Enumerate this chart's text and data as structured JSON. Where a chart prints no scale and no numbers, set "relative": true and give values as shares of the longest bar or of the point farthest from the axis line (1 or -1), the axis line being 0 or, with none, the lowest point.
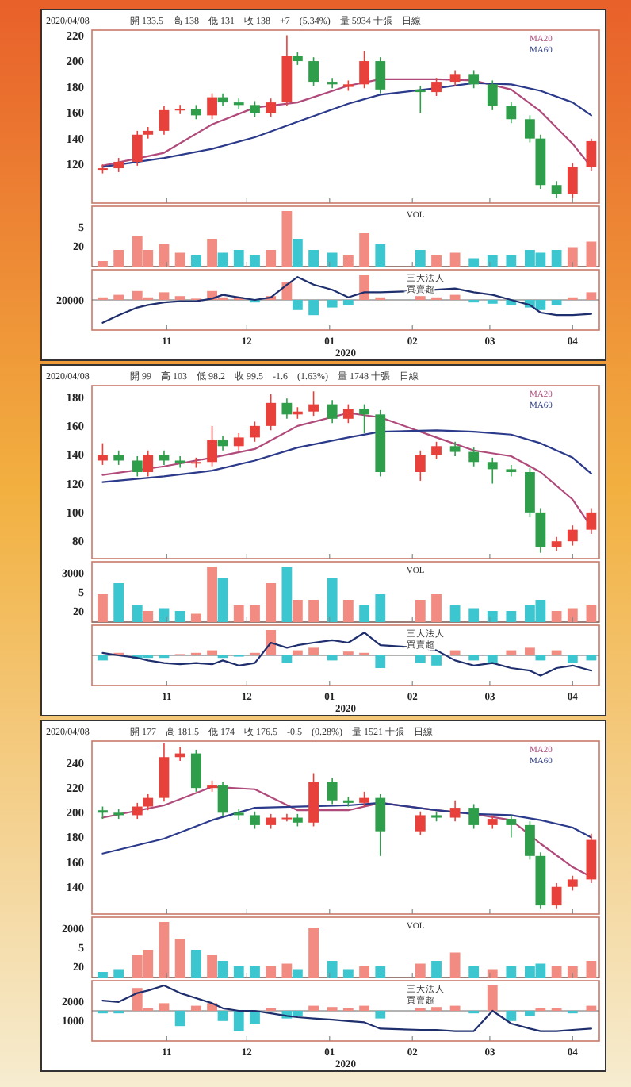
{
  "chart_data": [
    {
      "type": "candlestick",
      "title": "2020/04/08",
      "subtitle": "開 133.5　高 138　低 131　收 138　+7　(5.34%)　量 5934 十張　日線",
      "x": [
        "2019-10-08",
        "2019-10-14",
        "2019-10-21",
        "2019-10-25",
        "2019-10-31",
        "2019-11-06",
        "2019-11-12",
        "2019-11-18",
        "2019-11-22",
        "2019-11-28",
        "2019-12-04",
        "2019-12-10",
        "2019-12-16",
        "2019-12-20",
        "2019-12-26",
        "2020-01-02",
        "2020-01-08",
        "2020-01-14",
        "2020-01-20",
        "2020-02-04",
        "2020-02-10",
        "2020-02-17",
        "2020-02-24",
        "2020-03-02",
        "2020-03-09",
        "2020-03-16",
        "2020-03-20",
        "2020-03-26",
        "2020-04-01",
        "2020-04-08"
      ],
      "ohlc": [
        [
          116,
          120,
          113,
          117
        ],
        [
          117,
          125,
          114,
          122
        ],
        [
          122,
          146,
          119,
          143
        ],
        [
          143,
          149,
          140,
          146
        ],
        [
          146,
          165,
          143,
          162
        ],
        [
          162,
          166,
          159,
          163
        ],
        [
          163,
          166,
          155,
          158
        ],
        [
          158,
          175,
          155,
          172
        ],
        [
          172,
          175,
          165,
          168
        ],
        [
          168,
          171,
          163,
          166
        ],
        [
          166,
          169,
          157,
          160
        ],
        [
          160,
          171,
          157,
          168
        ],
        [
          168,
          220,
          165,
          204
        ],
        [
          204,
          207,
          197,
          200
        ],
        [
          200,
          203,
          181,
          184
        ],
        [
          184,
          187,
          179,
          182
        ],
        [
          180,
          185,
          177,
          182
        ],
        [
          182,
          208,
          179,
          200
        ],
        [
          200,
          203,
          175,
          178
        ],
        [
          178,
          181,
          160,
          176
        ],
        [
          176,
          187,
          173,
          184
        ],
        [
          184,
          193,
          181,
          190
        ],
        [
          190,
          193,
          179,
          182
        ],
        [
          182,
          185,
          162,
          165
        ],
        [
          165,
          168,
          152,
          155
        ],
        [
          155,
          158,
          137,
          140
        ],
        [
          140,
          143,
          101,
          104
        ],
        [
          104,
          107,
          94,
          97
        ],
        [
          97,
          121,
          94,
          118
        ],
        [
          118,
          140,
          115,
          138
        ]
      ],
      "colors": [
        "#e8413c",
        "#e8413c",
        "#e8413c",
        "#e8413c",
        "#e8413c",
        "#e8413c",
        "#2f9e4a",
        "#e8413c",
        "#2f9e4a",
        "#2f9e4a",
        "#2f9e4a",
        "#e8413c",
        "#e8413c",
        "#2f9e4a",
        "#2f9e4a",
        "#2f9e4a",
        "#e8413c",
        "#e8413c",
        "#2f9e4a",
        "#2f9e4a",
        "#e8413c",
        "#e8413c",
        "#2f9e4a",
        "#2f9e4a",
        "#2f9e4a",
        "#2f9e4a",
        "#2f9e4a",
        "#2f9e4a",
        "#e8413c",
        "#e8413c"
      ],
      "series": [
        {
          "type": "line",
          "name": "MA20",
          "color": "#b04a7a",
          "x": [
            "2019-10-08",
            "2019-10-31",
            "2019-11-18",
            "2019-12-04",
            "2019-12-20",
            "2020-01-08",
            "2020-01-20",
            "2020-02-10",
            "2020-02-24",
            "2020-03-09",
            "2020-03-20",
            "2020-04-01",
            "2020-04-08"
          ],
          "values": [
            119,
            129,
            151,
            164,
            168,
            181,
            186,
            186,
            185,
            178,
            161,
            136,
            118
          ]
        },
        {
          "type": "line",
          "name": "MA60",
          "color": "#2b3a8a",
          "x": [
            "2019-10-08",
            "2019-10-31",
            "2019-11-18",
            "2019-12-04",
            "2019-12-20",
            "2020-01-08",
            "2020-01-20",
            "2020-02-10",
            "2020-02-24",
            "2020-03-09",
            "2020-03-20",
            "2020-04-01",
            "2020-04-08"
          ],
          "values": [
            118,
            125,
            132,
            141,
            153,
            167,
            174,
            179,
            183,
            182,
            177,
            168,
            158
          ]
        }
      ],
      "xlim": [
        "2019-10-04",
        "2020-04-11"
      ],
      "xticks": [
        {
          "value": "2019-11-01",
          "label": null
        },
        {
          "value": "2019-12-01",
          "label": null
        },
        {
          "value": "2020-01-01",
          "label": null
        },
        {
          "value": "2020-02-01",
          "label": null
        },
        {
          "value": "2020-03-01",
          "label": null
        },
        {
          "value": "2020-04-01",
          "label": null
        }
      ],
      "ylim": [
        90,
        224
      ],
      "yticks": [
        120,
        140,
        160,
        180,
        200,
        220
      ],
      "tick_labels": "y",
      "legend": "top right"
    },
    {
      "type": "bar",
      "relative": true,
      "x": [
        "2019-10-08",
        "2019-10-14",
        "2019-10-21",
        "2019-10-25",
        "2019-10-31",
        "2019-11-06",
        "2019-11-12",
        "2019-11-18",
        "2019-11-22",
        "2019-11-28",
        "2019-12-04",
        "2019-12-10",
        "2019-12-16",
        "2019-12-20",
        "2019-12-26",
        "2020-01-02",
        "2020-01-08",
        "2020-01-14",
        "2020-01-20",
        "2020-02-04",
        "2020-02-10",
        "2020-02-17",
        "2020-02-24",
        "2020-03-02",
        "2020-03-09",
        "2020-03-16",
        "2020-03-20",
        "2020-03-26",
        "2020-04-01",
        "2020-04-08"
      ],
      "values": [
        0.1,
        0.3,
        0.55,
        0.3,
        0.4,
        0.25,
        0.2,
        0.5,
        0.25,
        0.3,
        0.2,
        0.3,
        1.0,
        0.5,
        0.3,
        0.25,
        0.2,
        0.6,
        0.4,
        0.3,
        0.2,
        0.25,
        0.15,
        0.2,
        0.2,
        0.3,
        0.25,
        0.3,
        0.35,
        0.45
      ],
      "colors": [
        "#f28b82",
        "#f28b82",
        "#f28b82",
        "#f28b82",
        "#f28b82",
        "#f28b82",
        "#3cc6cf",
        "#f28b82",
        "#3cc6cf",
        "#3cc6cf",
        "#3cc6cf",
        "#f28b82",
        "#f28b82",
        "#3cc6cf",
        "#3cc6cf",
        "#3cc6cf",
        "#f28b82",
        "#f28b82",
        "#3cc6cf",
        "#3cc6cf",
        "#f28b82",
        "#f28b82",
        "#3cc6cf",
        "#3cc6cf",
        "#3cc6cf",
        "#3cc6cf",
        "#3cc6cf",
        "#3cc6cf",
        "#f28b82",
        "#f28b82"
      ],
      "xlim": [
        "2019-10-04",
        "2020-04-11"
      ],
      "xticks": [
        {
          "value": "2019-11-01",
          "label": null
        },
        {
          "value": "2019-12-01",
          "label": null
        },
        {
          "value": "2020-01-01",
          "label": null
        },
        {
          "value": "2020-02-01",
          "label": null
        },
        {
          "value": "2020-03-01",
          "label": null
        },
        {
          "value": "2020-04-01",
          "label": null
        }
      ],
      "tick_labels": false,
      "annotations": [
        "VOL",
        "5",
        "20"
      ]
    },
    {
      "type": "bar",
      "relative": true,
      "x": [
        "2019-10-08",
        "2019-10-14",
        "2019-10-21",
        "2019-10-25",
        "2019-10-31",
        "2019-11-06",
        "2019-11-12",
        "2019-11-18",
        "2019-11-22",
        "2019-11-28",
        "2019-12-04",
        "2019-12-10",
        "2019-12-16",
        "2019-12-20",
        "2019-12-26",
        "2020-01-02",
        "2020-01-08",
        "2020-01-14",
        "2020-01-20",
        "2020-02-04",
        "2020-02-10",
        "2020-02-17",
        "2020-02-24",
        "2020-03-02",
        "2020-03-09",
        "2020-03-16",
        "2020-03-20",
        "2020-03-26",
        "2020-04-01",
        "2020-04-08"
      ],
      "series": [
        {
          "colors": [
            "#f28b82",
            "#f28b82",
            "#f28b82",
            "#f28b82",
            "#f28b82",
            "#f28b82",
            "#f28b82",
            "#f28b82",
            "#f28b82",
            "#f28b82",
            "#3cc6cf",
            "#f28b82",
            "#f28b82",
            "#3cc6cf",
            "#3cc6cf",
            "#3cc6cf",
            "#3cc6cf",
            "#f28b82",
            "#f28b82",
            "#f28b82",
            "#f28b82",
            "#f28b82",
            "#3cc6cf",
            "#3cc6cf",
            "#3cc6cf",
            "#3cc6cf",
            "#3cc6cf",
            "#3cc6cf",
            "#f28b82",
            "#f28b82"
          ],
          "values": [
            0.1,
            0.2,
            0.35,
            0.1,
            0.3,
            0.15,
            0.05,
            0.35,
            0.1,
            0.1,
            -0.1,
            0.15,
            0.7,
            -0.4,
            -0.6,
            -0.3,
            -0.2,
            1.0,
            0.1,
            0.15,
            0.1,
            0.2,
            -0.1,
            -0.15,
            -0.2,
            -0.3,
            -0.4,
            -0.2,
            0.1,
            0.3
          ]
        },
        {
          "type": "line",
          "color": "#1f2f6e",
          "values": [
            -0.9,
            -0.6,
            -0.3,
            -0.2,
            -0.1,
            -0.05,
            -0.05,
            0.05,
            0.2,
            0.1,
            0.0,
            0.1,
            0.6,
            0.9,
            0.6,
            0.4,
            0.1,
            0.3,
            0.3,
            0.35,
            0.4,
            0.45,
            0.3,
            0.2,
            0.0,
            -0.2,
            -0.5,
            -0.6,
            -0.6,
            -0.55
          ]
        }
      ],
      "xlim": [
        "2019-10-04",
        "2020-04-11"
      ],
      "xticks": [
        {
          "value": "2019-11-01",
          "label": "11"
        },
        {
          "value": "2019-12-01",
          "label": "12"
        },
        {
          "value": "2020-01-01",
          "label": "01"
        },
        {
          "value": "2020-02-01",
          "label": "02"
        },
        {
          "value": "2020-03-01",
          "label": "03"
        },
        {
          "value": "2020-04-01",
          "label": "04"
        }
      ],
      "xlabel": "2020",
      "tick_labels": "x",
      "annotations": [
        "20000",
        "三大法人",
        "買賣超"
      ]
    },
    {
      "type": "candlestick",
      "title": "2020/04/08",
      "subtitle": "開 99　高 103　低 98.2　收 99.5　-1.6　(1.63%)　量 1748 十張　日線",
      "x": [
        "2019-10-08",
        "2019-10-14",
        "2019-10-21",
        "2019-10-25",
        "2019-10-31",
        "2019-11-06",
        "2019-11-12",
        "2019-11-18",
        "2019-11-22",
        "2019-11-28",
        "2019-12-04",
        "2019-12-10",
        "2019-12-16",
        "2019-12-20",
        "2019-12-26",
        "2020-01-02",
        "2020-01-08",
        "2020-01-14",
        "2020-01-20",
        "2020-02-04",
        "2020-02-10",
        "2020-02-17",
        "2020-02-24",
        "2020-03-02",
        "2020-03-09",
        "2020-03-16",
        "2020-03-20",
        "2020-03-26",
        "2020-04-01",
        "2020-04-08"
      ],
      "ohlc": [
        [
          136,
          148,
          133,
          140
        ],
        [
          140,
          143,
          133,
          136
        ],
        [
          136,
          139,
          125,
          128
        ],
        [
          128,
          143,
          125,
          140
        ],
        [
          140,
          143,
          133,
          136
        ],
        [
          136,
          139,
          131,
          134
        ],
        [
          134,
          138,
          131,
          135
        ],
        [
          135,
          160,
          132,
          150
        ],
        [
          150,
          153,
          143,
          146
        ],
        [
          146,
          155,
          143,
          152
        ],
        [
          152,
          163,
          149,
          160
        ],
        [
          160,
          182,
          157,
          176
        ],
        [
          176,
          179,
          165,
          168
        ],
        [
          168,
          173,
          165,
          170
        ],
        [
          170,
          184,
          167,
          175
        ],
        [
          175,
          178,
          162,
          165
        ],
        [
          165,
          175,
          162,
          172
        ],
        [
          172,
          175,
          155,
          168
        ],
        [
          168,
          171,
          125,
          128
        ],
        [
          128,
          143,
          122,
          140
        ],
        [
          140,
          149,
          137,
          146
        ],
        [
          146,
          149,
          139,
          142
        ],
        [
          142,
          145,
          132,
          135
        ],
        [
          135,
          138,
          120,
          130
        ],
        [
          130,
          133,
          125,
          128
        ],
        [
          128,
          131,
          97,
          100
        ],
        [
          100,
          103,
          72,
          76
        ],
        [
          76,
          83,
          73,
          80
        ],
        [
          80,
          91,
          77,
          88
        ],
        [
          88,
          103,
          85,
          100
        ]
      ],
      "colors": [
        "#e8413c",
        "#2f9e4a",
        "#2f9e4a",
        "#e8413c",
        "#2f9e4a",
        "#2f9e4a",
        "#e8413c",
        "#e8413c",
        "#2f9e4a",
        "#e8413c",
        "#e8413c",
        "#e8413c",
        "#2f9e4a",
        "#e8413c",
        "#e8413c",
        "#2f9e4a",
        "#e8413c",
        "#2f9e4a",
        "#2f9e4a",
        "#e8413c",
        "#e8413c",
        "#2f9e4a",
        "#2f9e4a",
        "#2f9e4a",
        "#2f9e4a",
        "#2f9e4a",
        "#2f9e4a",
        "#e8413c",
        "#e8413c",
        "#e8413c"
      ],
      "series": [
        {
          "type": "line",
          "name": "MA20",
          "color": "#b04a7a",
          "x": [
            "2019-10-08",
            "2019-10-31",
            "2019-11-18",
            "2019-12-04",
            "2019-12-20",
            "2020-01-08",
            "2020-01-20",
            "2020-02-10",
            "2020-02-24",
            "2020-03-09",
            "2020-03-20",
            "2020-04-01",
            "2020-04-08"
          ],
          "values": [
            126,
            132,
            138,
            144,
            160,
            169,
            166,
            152,
            143,
            139,
            128,
            109,
            90
          ]
        },
        {
          "type": "line",
          "name": "MA60",
          "color": "#2b3a8a",
          "x": [
            "2019-10-08",
            "2019-10-31",
            "2019-11-18",
            "2019-12-04",
            "2019-12-20",
            "2020-01-08",
            "2020-01-20",
            "2020-02-10",
            "2020-02-24",
            "2020-03-09",
            "2020-03-20",
            "2020-04-01",
            "2020-04-08"
          ],
          "values": [
            121,
            125,
            129,
            136,
            145,
            152,
            156,
            157,
            156,
            154,
            148,
            138,
            127
          ]
        }
      ],
      "xlim": [
        "2019-10-04",
        "2020-04-11"
      ],
      "xticks": [
        {
          "value": "2019-11-01",
          "label": null
        },
        {
          "value": "2019-12-01",
          "label": null
        },
        {
          "value": "2020-01-01",
          "label": null
        },
        {
          "value": "2020-02-01",
          "label": null
        },
        {
          "value": "2020-03-01",
          "label": null
        },
        {
          "value": "2020-04-01",
          "label": null
        }
      ],
      "ylim": [
        68,
        188
      ],
      "yticks": [
        80,
        100,
        120,
        140,
        160,
        180
      ],
      "tick_labels": "y",
      "legend": "top right"
    },
    {
      "type": "bar",
      "relative": true,
      "x": [
        "2019-10-08",
        "2019-10-14",
        "2019-10-21",
        "2019-10-25",
        "2019-10-31",
        "2019-11-06",
        "2019-11-12",
        "2019-11-18",
        "2019-11-22",
        "2019-11-28",
        "2019-12-04",
        "2019-12-10",
        "2019-12-16",
        "2019-12-20",
        "2019-12-26",
        "2020-01-02",
        "2020-01-08",
        "2020-01-14",
        "2020-01-20",
        "2020-02-04",
        "2020-02-10",
        "2020-02-17",
        "2020-02-24",
        "2020-03-02",
        "2020-03-09",
        "2020-03-16",
        "2020-03-20",
        "2020-03-26",
        "2020-04-01",
        "2020-04-08"
      ],
      "values": [
        0.5,
        0.7,
        0.3,
        0.2,
        0.25,
        0.2,
        0.15,
        1.0,
        0.8,
        0.3,
        0.3,
        0.7,
        1.0,
        0.4,
        0.4,
        0.8,
        0.4,
        0.3,
        0.5,
        0.4,
        0.5,
        0.3,
        0.25,
        0.2,
        0.2,
        0.3,
        0.4,
        0.2,
        0.25,
        0.3
      ],
      "colors": [
        "#f28b82",
        "#3cc6cf",
        "#3cc6cf",
        "#f28b82",
        "#3cc6cf",
        "#3cc6cf",
        "#f28b82",
        "#f28b82",
        "#3cc6cf",
        "#f28b82",
        "#f28b82",
        "#f28b82",
        "#3cc6cf",
        "#f28b82",
        "#f28b82",
        "#3cc6cf",
        "#f28b82",
        "#3cc6cf",
        "#3cc6cf",
        "#f28b82",
        "#f28b82",
        "#3cc6cf",
        "#3cc6cf",
        "#3cc6cf",
        "#3cc6cf",
        "#3cc6cf",
        "#3cc6cf",
        "#f28b82",
        "#f28b82",
        "#f28b82"
      ],
      "xlim": [
        "2019-10-04",
        "2020-04-11"
      ],
      "xticks": [
        {
          "value": "2019-11-01",
          "label": null
        },
        {
          "value": "2019-12-01",
          "label": null
        },
        {
          "value": "2020-01-01",
          "label": null
        },
        {
          "value": "2020-02-01",
          "label": null
        },
        {
          "value": "2020-03-01",
          "label": null
        },
        {
          "value": "2020-04-01",
          "label": null
        }
      ],
      "tick_labels": false,
      "annotations": [
        "3000",
        "VOL",
        "5",
        "20"
      ]
    },
    {
      "type": "bar",
      "relative": true,
      "x": [
        "2019-10-08",
        "2019-10-14",
        "2019-10-21",
        "2019-10-25",
        "2019-10-31",
        "2019-11-06",
        "2019-11-12",
        "2019-11-18",
        "2019-11-22",
        "2019-11-28",
        "2019-12-04",
        "2019-12-10",
        "2019-12-16",
        "2019-12-20",
        "2019-12-26",
        "2020-01-02",
        "2020-01-08",
        "2020-01-14",
        "2020-01-20",
        "2020-02-04",
        "2020-02-10",
        "2020-02-17",
        "2020-02-24",
        "2020-03-02",
        "2020-03-09",
        "2020-03-16",
        "2020-03-20",
        "2020-03-26",
        "2020-04-01",
        "2020-04-08"
      ],
      "series": [
        {
          "colors": [
            "#3cc6cf",
            "#f28b82",
            "#3cc6cf",
            "#3cc6cf",
            "#3cc6cf",
            "#f28b82",
            "#f28b82",
            "#f28b82",
            "#3cc6cf",
            "#3cc6cf",
            "#f28b82",
            "#f28b82",
            "#3cc6cf",
            "#f28b82",
            "#f28b82",
            "#3cc6cf",
            "#f28b82",
            "#f28b82",
            "#3cc6cf",
            "#3cc6cf",
            "#3cc6cf",
            "#f28b82",
            "#3cc6cf",
            "#3cc6cf",
            "#f28b82",
            "#f28b82",
            "#3cc6cf",
            "#f28b82",
            "#3cc6cf",
            "#3cc6cf"
          ],
          "values": [
            -0.2,
            0.1,
            -0.15,
            -0.1,
            -0.1,
            0.05,
            0.1,
            0.2,
            -0.1,
            -0.05,
            0.1,
            1.0,
            -0.3,
            0.2,
            0.3,
            -0.2,
            0.15,
            0.1,
            -0.5,
            -0.3,
            -0.4,
            0.2,
            -0.2,
            -0.3,
            0.2,
            0.3,
            -0.2,
            0.2,
            -0.3,
            -0.2
          ]
        },
        {
          "type": "line",
          "color": "#1f2f6e",
          "values": [
            0.1,
            0.0,
            -0.1,
            -0.2,
            -0.3,
            -0.35,
            -0.3,
            -0.35,
            -0.2,
            -0.4,
            -0.3,
            0.5,
            0.3,
            0.4,
            0.5,
            0.6,
            0.5,
            0.9,
            0.4,
            0.3,
            0.2,
            -0.2,
            -0.4,
            -0.3,
            -0.5,
            -0.6,
            -0.8,
            -0.5,
            -0.4,
            -0.6
          ]
        }
      ],
      "xlim": [
        "2019-10-04",
        "2020-04-11"
      ],
      "xticks": [
        {
          "value": "2019-11-01",
          "label": "11"
        },
        {
          "value": "2019-12-01",
          "label": "12"
        },
        {
          "value": "2020-01-01",
          "label": "01"
        },
        {
          "value": "2020-02-01",
          "label": "02"
        },
        {
          "value": "2020-03-01",
          "label": "03"
        },
        {
          "value": "2020-04-01",
          "label": "04"
        }
      ],
      "xlabel": "2020",
      "tick_labels": "x",
      "annotations": [
        "三大法人",
        "買賣超"
      ]
    },
    {
      "type": "candlestick",
      "title": "2020/04/08",
      "subtitle": "開 177　高 181.5　低 174　收 176.5　-0.5　(0.28%)　量 1521 十張　日線",
      "x": [
        "2019-10-08",
        "2019-10-14",
        "2019-10-21",
        "2019-10-25",
        "2019-10-31",
        "2019-11-06",
        "2019-11-12",
        "2019-11-18",
        "2019-11-22",
        "2019-11-28",
        "2019-12-04",
        "2019-12-10",
        "2019-12-16",
        "2019-12-20",
        "2019-12-26",
        "2020-01-02",
        "2020-01-08",
        "2020-01-14",
        "2020-01-20",
        "2020-02-04",
        "2020-02-10",
        "2020-02-17",
        "2020-02-24",
        "2020-03-02",
        "2020-03-09",
        "2020-03-16",
        "2020-03-20",
        "2020-03-26",
        "2020-04-01",
        "2020-04-08"
      ],
      "ohlc": [
        [
          202,
          205,
          195,
          200
        ],
        [
          200,
          203,
          195,
          198
        ],
        [
          198,
          208,
          195,
          205
        ],
        [
          205,
          215,
          202,
          212
        ],
        [
          212,
          256,
          209,
          245
        ],
        [
          245,
          253,
          242,
          248
        ],
        [
          248,
          251,
          217,
          220
        ],
        [
          220,
          226,
          217,
          222
        ],
        [
          222,
          225,
          197,
          200
        ],
        [
          200,
          203,
          194,
          198
        ],
        [
          198,
          201,
          187,
          190
        ],
        [
          190,
          199,
          187,
          196
        ],
        [
          196,
          199,
          193,
          196
        ],
        [
          196,
          199,
          189,
          192
        ],
        [
          192,
          232,
          189,
          225
        ],
        [
          225,
          228,
          207,
          210
        ],
        [
          210,
          213,
          205,
          208
        ],
        [
          208,
          217,
          205,
          212
        ],
        [
          212,
          215,
          165,
          185
        ],
        [
          185,
          201,
          182,
          198
        ],
        [
          198,
          201,
          193,
          196
        ],
        [
          196,
          210,
          193,
          204
        ],
        [
          204,
          207,
          187,
          190
        ],
        [
          190,
          198,
          187,
          195
        ],
        [
          195,
          198,
          180,
          190
        ],
        [
          190,
          193,
          162,
          165
        ],
        [
          165,
          168,
          122,
          125
        ],
        [
          125,
          143,
          122,
          140
        ],
        [
          140,
          149,
          137,
          146
        ],
        [
          146,
          183,
          143,
          178
        ]
      ],
      "colors": [
        "#2f9e4a",
        "#2f9e4a",
        "#e8413c",
        "#e8413c",
        "#e8413c",
        "#e8413c",
        "#2f9e4a",
        "#e8413c",
        "#2f9e4a",
        "#2f9e4a",
        "#2f9e4a",
        "#e8413c",
        "#e8413c",
        "#2f9e4a",
        "#e8413c",
        "#2f9e4a",
        "#2f9e4a",
        "#e8413c",
        "#2f9e4a",
        "#e8413c",
        "#2f9e4a",
        "#e8413c",
        "#2f9e4a",
        "#e8413c",
        "#2f9e4a",
        "#2f9e4a",
        "#2f9e4a",
        "#e8413c",
        "#e8413c",
        "#e8413c"
      ],
      "series": [
        {
          "type": "line",
          "name": "MA20",
          "color": "#b04a7a",
          "x": [
            "2019-10-08",
            "2019-10-31",
            "2019-11-18",
            "2019-12-04",
            "2019-12-20",
            "2020-01-08",
            "2020-01-20",
            "2020-02-10",
            "2020-02-24",
            "2020-03-09",
            "2020-03-20",
            "2020-04-01",
            "2020-04-08"
          ],
          "values": [
            196,
            206,
            221,
            219,
            202,
            202,
            208,
            202,
            199,
            194,
            175,
            156,
            148
          ]
        },
        {
          "type": "line",
          "name": "MA60",
          "color": "#2b3a8a",
          "x": [
            "2019-10-08",
            "2019-10-31",
            "2019-11-18",
            "2019-12-04",
            "2019-12-20",
            "2020-01-08",
            "2020-01-20",
            "2020-02-10",
            "2020-02-24",
            "2020-03-09",
            "2020-03-20",
            "2020-04-01",
            "2020-04-08"
          ],
          "values": [
            167,
            179,
            194,
            204,
            205,
            206,
            208,
            202,
            199,
            198,
            194,
            188,
            180
          ]
        }
      ],
      "xlim": [
        "2019-10-04",
        "2020-04-11"
      ],
      "xticks": [
        {
          "value": "2019-11-01",
          "label": null
        },
        {
          "value": "2019-12-01",
          "label": null
        },
        {
          "value": "2020-01-01",
          "label": null
        },
        {
          "value": "2020-02-01",
          "label": null
        },
        {
          "value": "2020-03-01",
          "label": null
        },
        {
          "value": "2020-04-01",
          "label": null
        }
      ],
      "ylim": [
        118,
        258
      ],
      "yticks": [
        140,
        160,
        180,
        200,
        220,
        240
      ],
      "tick_labels": "y",
      "legend": "top right"
    },
    {
      "type": "bar",
      "relative": true,
      "x": [
        "2019-10-08",
        "2019-10-14",
        "2019-10-21",
        "2019-10-25",
        "2019-10-31",
        "2019-11-06",
        "2019-11-12",
        "2019-11-18",
        "2019-11-22",
        "2019-11-28",
        "2019-12-04",
        "2019-12-10",
        "2019-12-16",
        "2019-12-20",
        "2019-12-26",
        "2020-01-02",
        "2020-01-08",
        "2020-01-14",
        "2020-01-20",
        "2020-02-04",
        "2020-02-10",
        "2020-02-17",
        "2020-02-24",
        "2020-03-02",
        "2020-03-09",
        "2020-03-16",
        "2020-03-20",
        "2020-03-26",
        "2020-04-01",
        "2020-04-08"
      ],
      "values": [
        0.1,
        0.15,
        0.4,
        0.5,
        1.0,
        0.7,
        0.5,
        0.4,
        0.3,
        0.2,
        0.2,
        0.2,
        0.25,
        0.15,
        0.9,
        0.3,
        0.15,
        0.2,
        0.2,
        0.25,
        0.3,
        0.45,
        0.2,
        0.15,
        0.2,
        0.2,
        0.25,
        0.2,
        0.2,
        0.3
      ],
      "colors": [
        "#3cc6cf",
        "#3cc6cf",
        "#f28b82",
        "#f28b82",
        "#f28b82",
        "#f28b82",
        "#3cc6cf",
        "#f28b82",
        "#3cc6cf",
        "#3cc6cf",
        "#3cc6cf",
        "#f28b82",
        "#f28b82",
        "#3cc6cf",
        "#f28b82",
        "#3cc6cf",
        "#3cc6cf",
        "#f28b82",
        "#3cc6cf",
        "#f28b82",
        "#3cc6cf",
        "#f28b82",
        "#3cc6cf",
        "#f28b82",
        "#3cc6cf",
        "#3cc6cf",
        "#3cc6cf",
        "#f28b82",
        "#f28b82",
        "#f28b82"
      ],
      "xlim": [
        "2019-10-04",
        "2020-04-11"
      ],
      "xticks": [
        {
          "value": "2019-11-01",
          "label": null
        },
        {
          "value": "2019-12-01",
          "label": null
        },
        {
          "value": "2020-01-01",
          "label": null
        },
        {
          "value": "2020-02-01",
          "label": null
        },
        {
          "value": "2020-03-01",
          "label": null
        },
        {
          "value": "2020-04-01",
          "label": null
        }
      ],
      "tick_labels": false,
      "annotations": [
        "2000",
        "VOL",
        "5",
        "20"
      ]
    },
    {
      "type": "bar",
      "relative": true,
      "x": [
        "2019-10-08",
        "2019-10-14",
        "2019-10-21",
        "2019-10-25",
        "2019-10-31",
        "2019-11-06",
        "2019-11-12",
        "2019-11-18",
        "2019-11-22",
        "2019-11-28",
        "2019-12-04",
        "2019-12-10",
        "2019-12-16",
        "2019-12-20",
        "2019-12-26",
        "2020-01-02",
        "2020-01-08",
        "2020-01-14",
        "2020-01-20",
        "2020-02-04",
        "2020-02-10",
        "2020-02-17",
        "2020-02-24",
        "2020-03-02",
        "2020-03-09",
        "2020-03-16",
        "2020-03-20",
        "2020-03-26",
        "2020-04-01",
        "2020-04-08"
      ],
      "series": [
        {
          "colors": [
            "#3cc6cf",
            "#3cc6cf",
            "#f28b82",
            "#f28b82",
            "#f28b82",
            "#3cc6cf",
            "#f28b82",
            "#f28b82",
            "#3cc6cf",
            "#3cc6cf",
            "#3cc6cf",
            "#f28b82",
            "#3cc6cf",
            "#3cc6cf",
            "#f28b82",
            "#f28b82",
            "#f28b82",
            "#f28b82",
            "#3cc6cf",
            "#f28b82",
            "#f28b82",
            "#f28b82",
            "#3cc6cf",
            "#f28b82",
            "#3cc6cf",
            "#3cc6cf",
            "#f28b82",
            "#f28b82",
            "#3cc6cf",
            "#f28b82"
          ],
          "values": [
            -0.1,
            -0.1,
            0.9,
            0.1,
            0.3,
            -0.6,
            0.2,
            0.3,
            -0.4,
            -0.8,
            -0.5,
            0.1,
            -0.3,
            -0.2,
            0.2,
            0.15,
            0.1,
            0.2,
            -0.3,
            0.1,
            0.15,
            0.2,
            -0.1,
            1.0,
            -0.4,
            -0.2,
            0.1,
            0.1,
            -0.1,
            0.2
          ]
        },
        {
          "type": "line",
          "color": "#1f2f6e",
          "values": [
            0.4,
            0.35,
            0.7,
            0.8,
            1.0,
            0.7,
            0.5,
            0.3,
            0.1,
            0.0,
            0.0,
            -0.1,
            -0.2,
            -0.25,
            -0.3,
            -0.35,
            -0.4,
            -0.45,
            -0.7,
            -0.75,
            -0.75,
            -0.8,
            -0.8,
            0.0,
            -0.5,
            -0.7,
            -0.8,
            -0.8,
            -0.75,
            -0.7
          ]
        }
      ],
      "xlim": [
        "2019-10-04",
        "2020-04-11"
      ],
      "xticks": [
        {
          "value": "2019-11-01",
          "label": "11"
        },
        {
          "value": "2019-12-01",
          "label": "12"
        },
        {
          "value": "2020-01-01",
          "label": "01"
        },
        {
          "value": "2020-02-01",
          "label": "02"
        },
        {
          "value": "2020-03-01",
          "label": "03"
        },
        {
          "value": "2020-04-01",
          "label": "04"
        }
      ],
      "xlabel": "2020",
      "tick_labels": "x",
      "annotations": [
        "2000",
        "1000",
        "三大法人",
        "買賣超"
      ]
    }
  ]
}
